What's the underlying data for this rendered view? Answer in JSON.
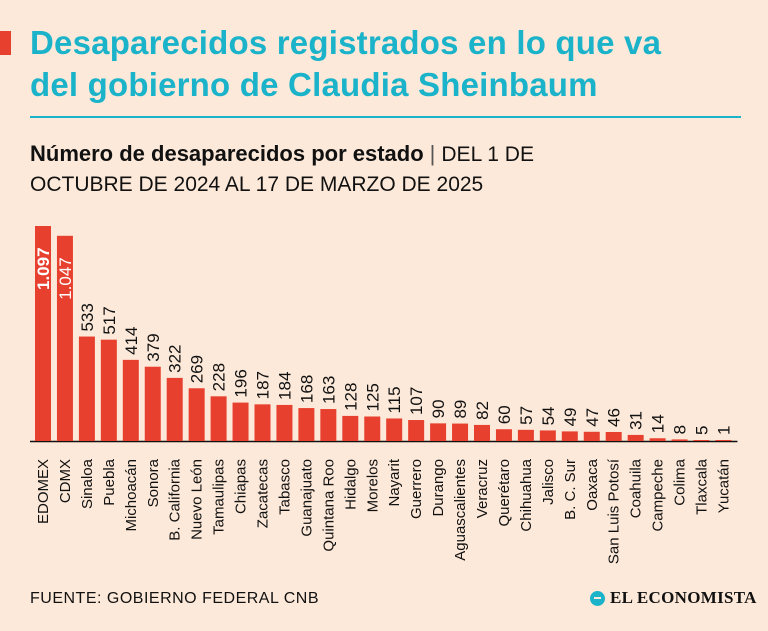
{
  "header": {
    "title_line1": "Desaparecidos registrados en lo que va",
    "title_line2": "del gobierno de Claudia Sheinbaum",
    "subtitle_bold": "Número de desaparecidos por estado",
    "subtitle_sep": "|",
    "subtitle_dates_1": "del 1 de",
    "subtitle_dates_2": "octubre de 2024 al 17 de marzo de 2025"
  },
  "footer": {
    "source": "FUENTE: GOBIERNO FEDERAL CNB",
    "brand": "EL ECONOMISTA"
  },
  "colors": {
    "bar": "#e8402f",
    "title": "#1bb3c9",
    "background": "#fde9d9"
  },
  "chart_data": {
    "type": "bar",
    "title": "Número de desaparecidos por estado",
    "xlabel": "",
    "ylabel": "",
    "categories": [
      "EDOMEX",
      "CDMX",
      "Sinaloa",
      "Puebla",
      "Michoacán",
      "Sonora",
      "B. California",
      "Nuevo León",
      "Tamaulipas",
      "Chiapas",
      "Zacatecas",
      "Tabasco",
      "Guanajuato",
      "Quintana Roo",
      "Hidalgo",
      "Morelos",
      "Nayarit",
      "Guerrero",
      "Durango",
      "Aguascalientes",
      "Veracruz",
      "Querétaro",
      "Chihuahua",
      "Jalisco",
      "B. C. Sur",
      "Oaxaca",
      "San Luis Potosí",
      "Coahuila",
      "Campeche",
      "Colima",
      "Tlaxcala",
      "Yucatán"
    ],
    "values": [
      1097,
      1047,
      533,
      517,
      414,
      379,
      322,
      269,
      228,
      196,
      187,
      184,
      168,
      163,
      128,
      125,
      115,
      107,
      90,
      89,
      82,
      60,
      57,
      54,
      49,
      47,
      46,
      31,
      14,
      8,
      5,
      1
    ],
    "value_labels": [
      "1.097",
      "1.047",
      "533",
      "517",
      "414",
      "379",
      "322",
      "269",
      "228",
      "196",
      "187",
      "184",
      "168",
      "163",
      "128",
      "125",
      "115",
      "107",
      "90",
      "89",
      "82",
      "60",
      "57",
      "54",
      "49",
      "47",
      "46",
      "31",
      "14",
      "8",
      "5",
      "1"
    ],
    "ylim": [
      0,
      1100
    ],
    "grid": false,
    "legend": "none"
  }
}
